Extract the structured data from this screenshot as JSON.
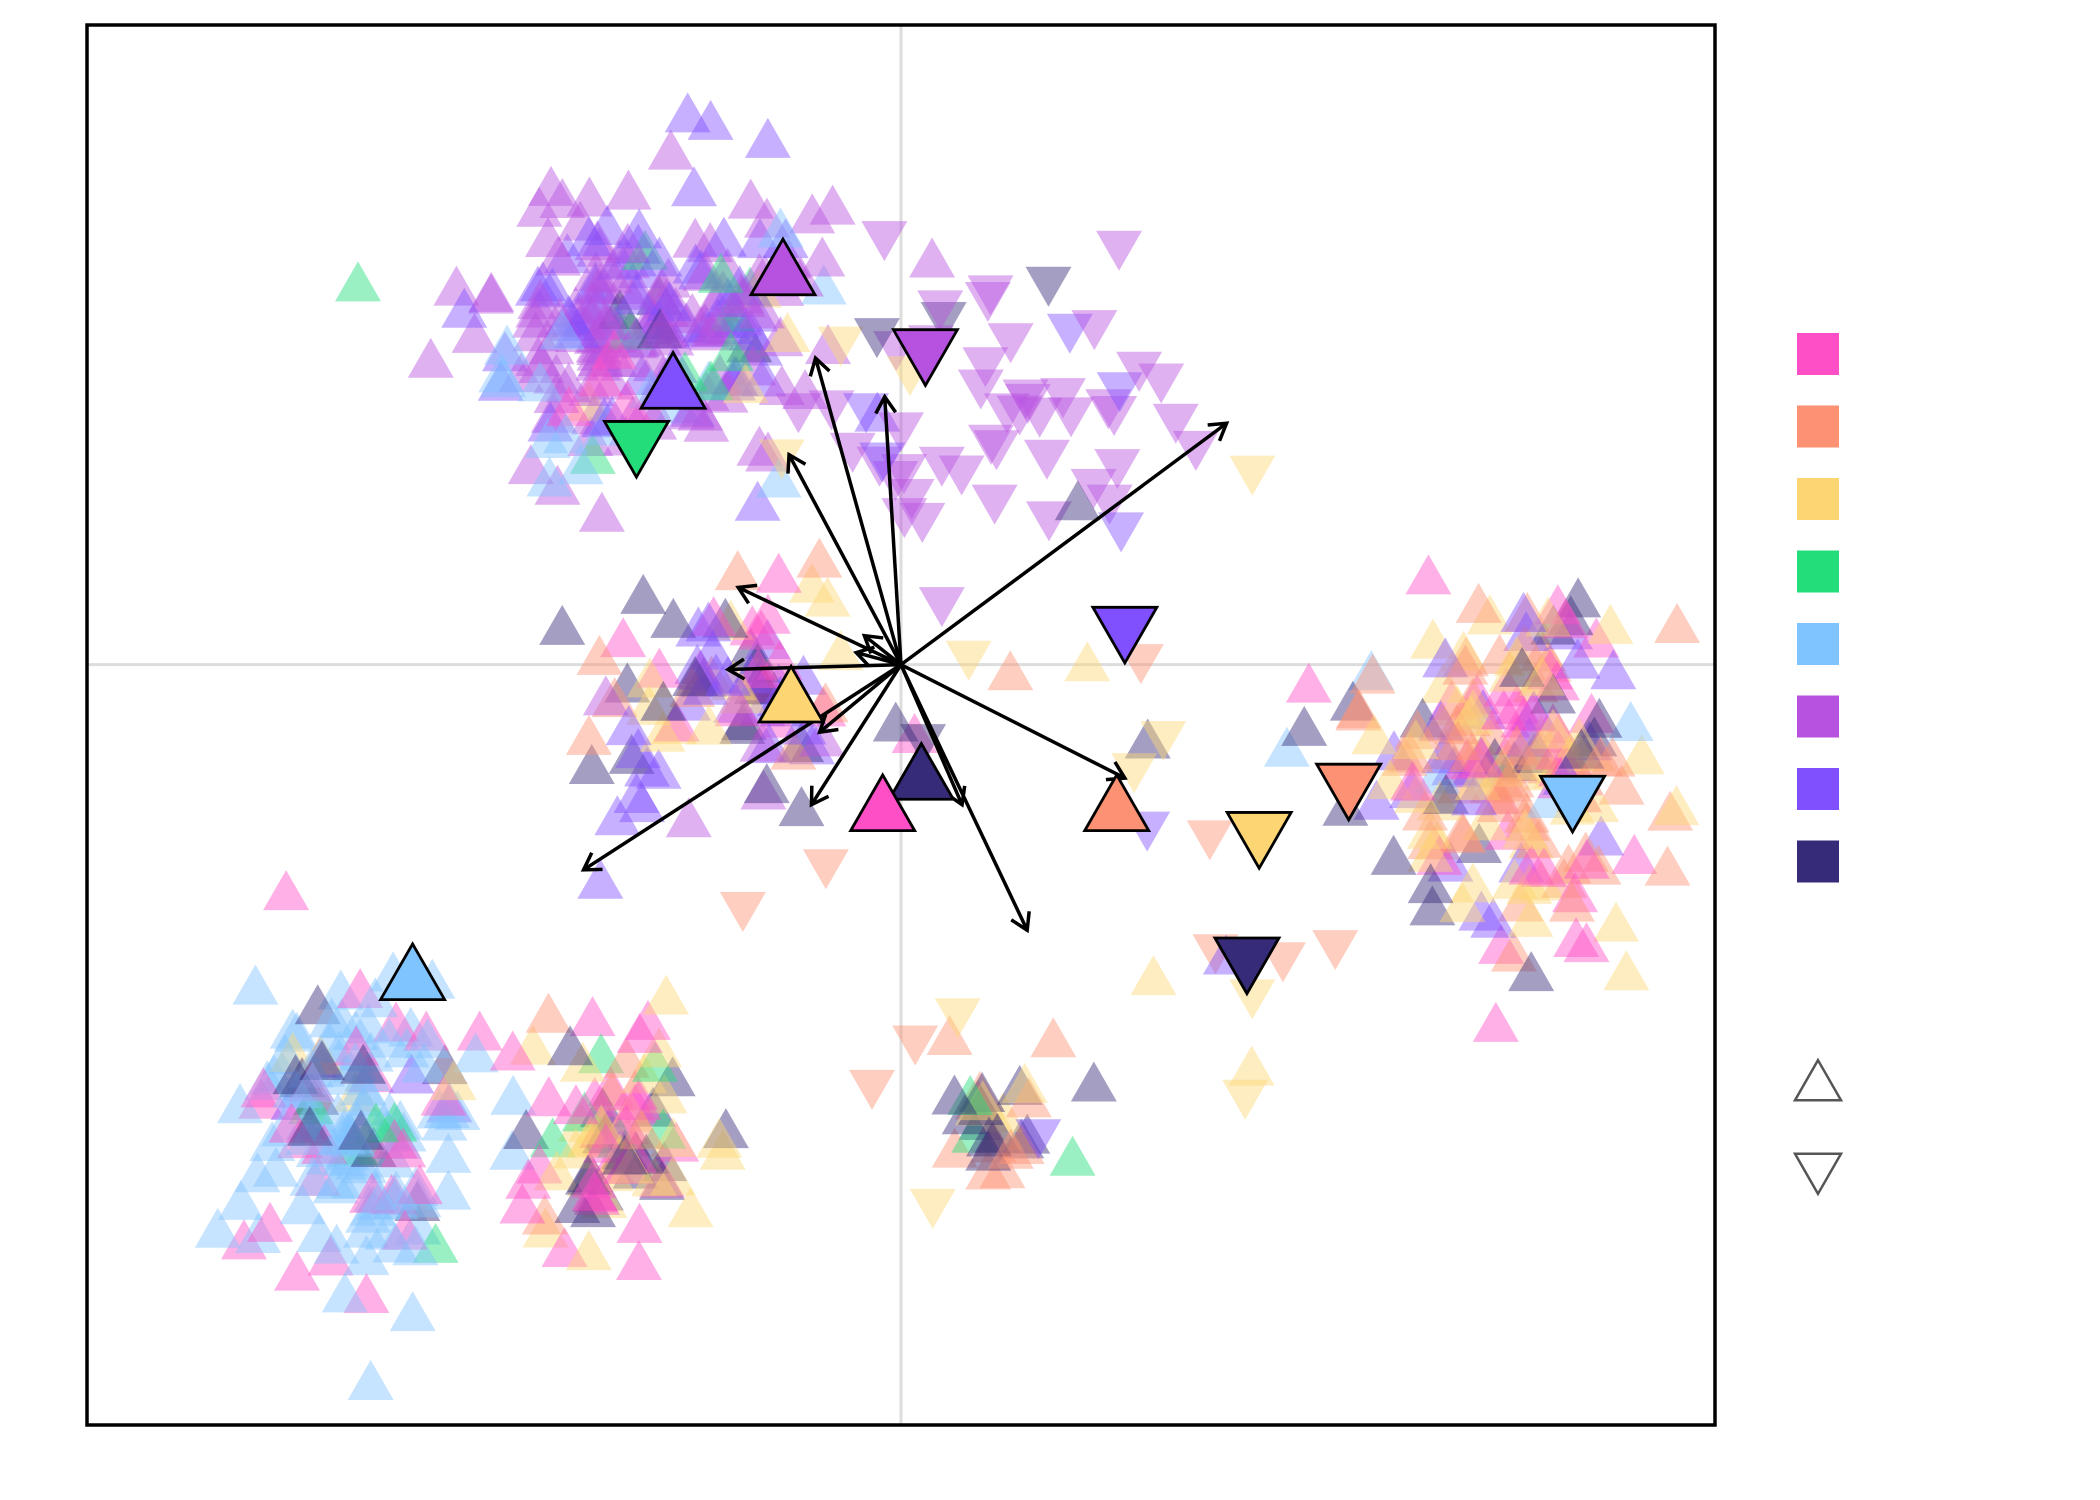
{
  "chart_data": {
    "type": "scatter",
    "title": "",
    "xlabel": "",
    "ylabel": "",
    "xlim": [
      -4.0,
      4.0
    ],
    "ylim": [
      -3.15,
      2.65
    ],
    "grid": false,
    "zero_lines": true,
    "point_opacity": 0.45,
    "legend_placement": "right",
    "shape_legend": [
      {
        "shape": "triangle-up",
        "label": ""
      },
      {
        "shape": "triangle-down",
        "label": ""
      }
    ],
    "groups": [
      {
        "color": "#ff4fc7",
        "label": ""
      },
      {
        "color": "#fc9273",
        "label": ""
      },
      {
        "color": "#fdd673",
        "label": ""
      },
      {
        "color": "#22dd7a",
        "label": ""
      },
      {
        "color": "#80c4ff",
        "label": ""
      },
      {
        "color": "#b752e0",
        "label": ""
      },
      {
        "color": "#8050ff",
        "label": ""
      },
      {
        "color": "#352b78",
        "label": ""
      }
    ],
    "clusters": [
      {
        "id": "upper-purple",
        "cx": -1.2,
        "cy": 1.45,
        "sx": 0.42,
        "sy": 0.28,
        "n": 200,
        "shape": "up",
        "mix": [
          [
            5,
            0.58
          ],
          [
            6,
            0.3
          ],
          [
            3,
            0.04
          ],
          [
            4,
            0.03
          ],
          [
            7,
            0.03
          ],
          [
            2,
            0.02
          ]
        ]
      },
      {
        "id": "purple-trail",
        "cx": 0.55,
        "cy": 1.05,
        "sx": 0.6,
        "sy": 0.33,
        "n": 55,
        "shape": "down",
        "mix": [
          [
            5,
            0.82
          ],
          [
            6,
            0.08
          ],
          [
            2,
            0.05
          ],
          [
            7,
            0.05
          ]
        ]
      },
      {
        "id": "left-light-blue",
        "cx": -1.6,
        "cy": 1.1,
        "sx": 0.22,
        "sy": 0.22,
        "n": 18,
        "shape": "up",
        "mix": [
          [
            4,
            0.6
          ],
          [
            6,
            0.2
          ],
          [
            0,
            0.1
          ],
          [
            3,
            0.1
          ]
        ]
      },
      {
        "id": "center-cluster",
        "cx": -0.85,
        "cy": -0.15,
        "sx": 0.35,
        "sy": 0.28,
        "n": 90,
        "shape": "up",
        "mix": [
          [
            6,
            0.3
          ],
          [
            0,
            0.18
          ],
          [
            7,
            0.22
          ],
          [
            2,
            0.15
          ],
          [
            1,
            0.1
          ],
          [
            5,
            0.05
          ]
        ]
      },
      {
        "id": "right-cluster",
        "cx": 3.0,
        "cy": -0.35,
        "sx": 0.38,
        "sy": 0.35,
        "n": 190,
        "shape": "up",
        "mix": [
          [
            1,
            0.33
          ],
          [
            2,
            0.22
          ],
          [
            0,
            0.2
          ],
          [
            6,
            0.13
          ],
          [
            7,
            0.09
          ],
          [
            4,
            0.03
          ]
        ]
      },
      {
        "id": "lower-left-blue",
        "cx": -2.7,
        "cy": -1.9,
        "sx": 0.28,
        "sy": 0.35,
        "n": 150,
        "shape": "up",
        "mix": [
          [
            4,
            0.62
          ],
          [
            0,
            0.2
          ],
          [
            6,
            0.06
          ],
          [
            7,
            0.05
          ],
          [
            2,
            0.04
          ],
          [
            3,
            0.03
          ]
        ]
      },
      {
        "id": "lower-middle",
        "cx": -1.45,
        "cy": -2.0,
        "sx": 0.22,
        "sy": 0.22,
        "n": 90,
        "shape": "up",
        "mix": [
          [
            0,
            0.4
          ],
          [
            7,
            0.25
          ],
          [
            2,
            0.2
          ],
          [
            1,
            0.08
          ],
          [
            3,
            0.07
          ]
        ]
      },
      {
        "id": "bottom-center",
        "cx": 0.45,
        "cy": -1.9,
        "sx": 0.16,
        "sy": 0.16,
        "n": 30,
        "shape": "up",
        "mix": [
          [
            7,
            0.45
          ],
          [
            1,
            0.3
          ],
          [
            2,
            0.15
          ],
          [
            3,
            0.1
          ]
        ]
      },
      {
        "id": "sparse-scatter",
        "cx": 0.8,
        "cy": -0.7,
        "sx": 1.1,
        "sy": 0.7,
        "n": 32,
        "shape": "mixed",
        "mix": [
          [
            2,
            0.35
          ],
          [
            1,
            0.25
          ],
          [
            7,
            0.25
          ],
          [
            6,
            0.15
          ]
        ]
      }
    ],
    "centroids": [
      {
        "group": 5,
        "shape": "up",
        "x": -0.58,
        "y": 1.62
      },
      {
        "group": 5,
        "shape": "down",
        "x": 0.12,
        "y": 1.3
      },
      {
        "group": 6,
        "shape": "up",
        "x": -1.12,
        "y": 1.15
      },
      {
        "group": 3,
        "shape": "down",
        "x": -1.3,
        "y": 0.92
      },
      {
        "group": 6,
        "shape": "down",
        "x": 1.1,
        "y": 0.15
      },
      {
        "group": 2,
        "shape": "up",
        "x": -0.54,
        "y": -0.15
      },
      {
        "group": 7,
        "shape": "up",
        "x": 0.1,
        "y": -0.47
      },
      {
        "group": 0,
        "shape": "up",
        "x": -0.09,
        "y": -0.6
      },
      {
        "group": 1,
        "shape": "up",
        "x": 1.06,
        "y": -0.6
      },
      {
        "group": 2,
        "shape": "down",
        "x": 1.76,
        "y": -0.7
      },
      {
        "group": 1,
        "shape": "down",
        "x": 2.2,
        "y": -0.5
      },
      {
        "group": 4,
        "shape": "down",
        "x": 3.3,
        "y": -0.55
      },
      {
        "group": 7,
        "shape": "down",
        "x": 1.7,
        "y": -1.22
      },
      {
        "group": 4,
        "shape": "up",
        "x": -2.4,
        "y": -1.3
      }
    ],
    "loadings": [
      {
        "x": 1.6,
        "y": 1.0
      },
      {
        "x": -0.42,
        "y": 1.27
      },
      {
        "x": -0.08,
        "y": 1.11
      },
      {
        "x": -0.55,
        "y": 0.87
      },
      {
        "x": -0.8,
        "y": 0.32
      },
      {
        "x": -0.18,
        "y": 0.12
      },
      {
        "x": -0.22,
        "y": 0.05
      },
      {
        "x": -0.85,
        "y": -0.02
      },
      {
        "x": -0.4,
        "y": -0.28
      },
      {
        "x": -0.44,
        "y": -0.58
      },
      {
        "x": -1.56,
        "y": -0.85
      },
      {
        "x": 0.3,
        "y": -0.58
      },
      {
        "x": 0.62,
        "y": -1.1
      },
      {
        "x": 1.1,
        "y": -0.47
      }
    ]
  }
}
